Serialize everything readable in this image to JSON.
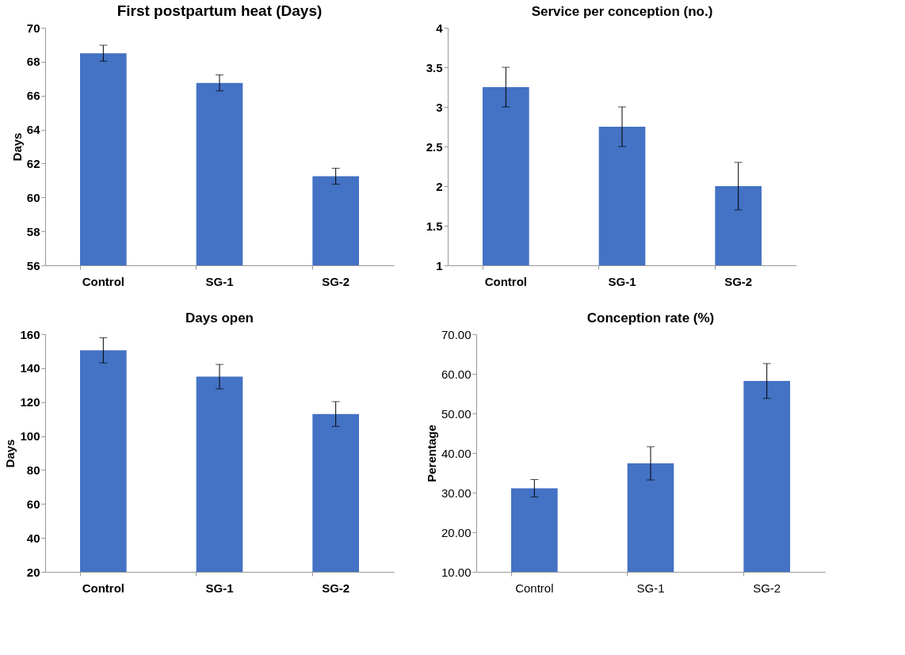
{
  "chart_data": [
    {
      "type": "bar",
      "title": "First postpartum  heat (Days)",
      "ylabel": "Days",
      "categories": [
        "Control",
        "SG-1",
        "SG-2"
      ],
      "values": [
        68.5,
        66.75,
        61.25
      ],
      "errors": [
        0.47,
        0.47,
        0.47
      ],
      "color": "#4472c4",
      "ylim": [
        56,
        70
      ],
      "yticks": [
        56,
        58,
        60,
        62,
        64,
        66,
        68,
        70
      ],
      "grid": false
    },
    {
      "type": "bar",
      "title": "Service per conception (no.)",
      "categories": [
        "Control",
        "SG-1",
        "SG-2"
      ],
      "values": [
        3.25,
        2.75,
        2.0
      ],
      "errors": [
        0.25,
        0.25,
        0.3
      ],
      "color": "#4472c4",
      "ylim": [
        1,
        4
      ],
      "yticks": [
        1,
        1.5,
        2,
        2.5,
        3,
        3.5,
        4
      ],
      "grid": false
    },
    {
      "type": "bar",
      "title": "Days open",
      "ylabel": "Days",
      "categories": [
        "Control",
        "SG-1",
        "SG-2"
      ],
      "values": [
        150.5,
        135,
        113
      ],
      "errors": [
        7.4,
        7.2,
        7.3
      ],
      "color": "#4472c4",
      "ylim": [
        20,
        160
      ],
      "yticks": [
        20,
        40,
        60,
        80,
        100,
        120,
        140,
        160
      ],
      "grid": false
    },
    {
      "type": "bar",
      "title": "Conception rate (%)",
      "ylabel": "Perentage",
      "categories": [
        "Control",
        "SG-1",
        "SG-2"
      ],
      "values": [
        31.1,
        37.4,
        58.2
      ],
      "errors": [
        2.2,
        4.2,
        4.4
      ],
      "color": "#4472c4",
      "ylim": [
        10,
        70
      ],
      "yticks": [
        {
          "value": 10,
          "label": "10.00"
        },
        {
          "value": 20,
          "label": "20.00"
        },
        {
          "value": 30,
          "label": "30.00"
        },
        {
          "value": 40,
          "label": "40.00"
        },
        {
          "value": 50,
          "label": "50.00"
        },
        {
          "value": 60,
          "label": "60.00"
        },
        {
          "value": 70,
          "label": "70.00"
        }
      ],
      "grid": false
    }
  ]
}
